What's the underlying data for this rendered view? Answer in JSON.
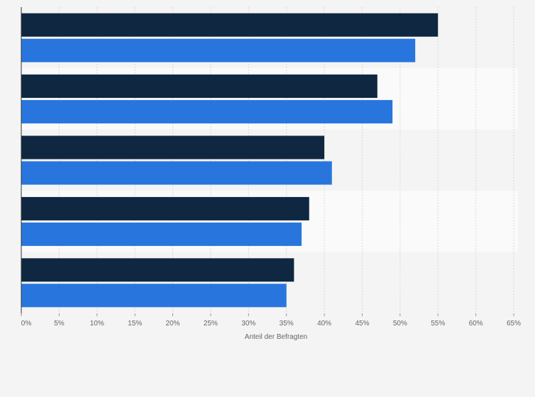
{
  "chart_data": {
    "type": "bar",
    "orientation": "horizontal",
    "categories": [
      "",
      "",
      "",
      "",
      ""
    ],
    "series": [
      {
        "color": "#0f2741",
        "values": [
          55,
          47,
          40,
          38,
          36
        ]
      },
      {
        "color": "#2876dd",
        "values": [
          52,
          49,
          41,
          37,
          35
        ]
      }
    ],
    "xlim": [
      0,
      65
    ],
    "xticks": [
      "0%",
      "5%",
      "10%",
      "15%",
      "20%",
      "25%",
      "30%",
      "35%",
      "40%",
      "45%",
      "50%",
      "55%",
      "60%",
      "65%"
    ],
    "xlabel": "Anteil der Befragten",
    "ylabel": "",
    "title": "",
    "grid": true,
    "band_colors": [
      "#f4f4f4",
      "#fafafa"
    ]
  }
}
